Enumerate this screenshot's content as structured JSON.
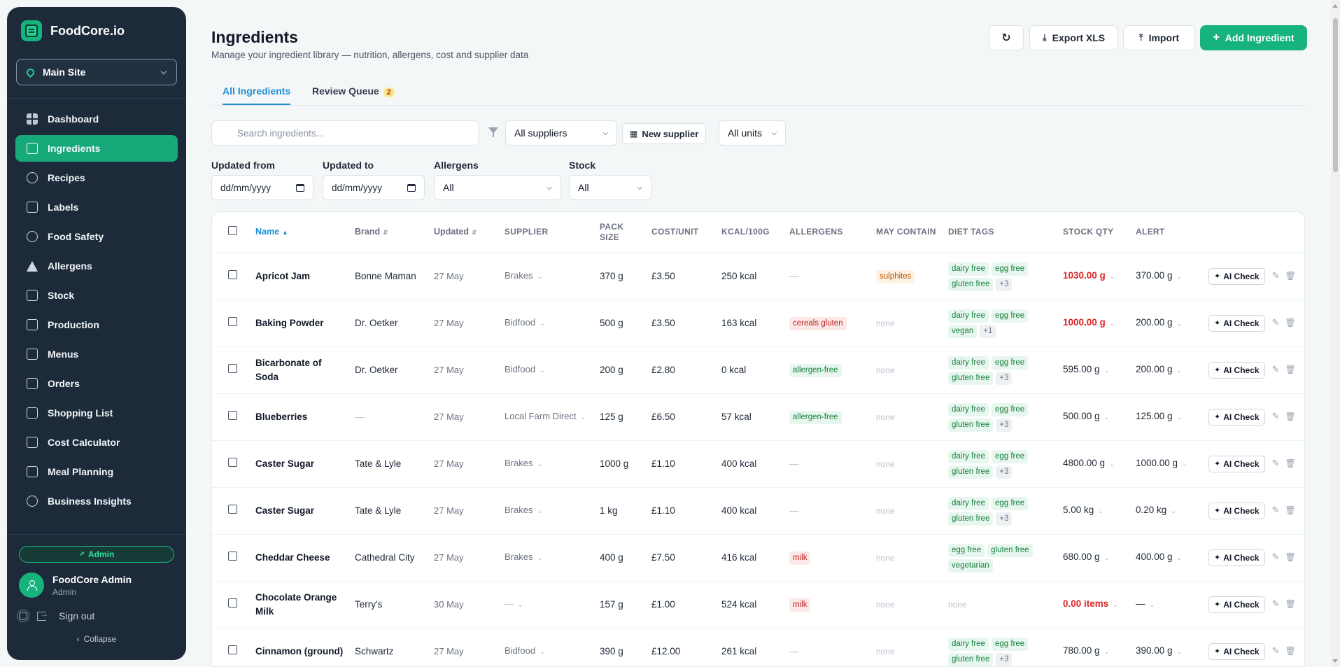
{
  "brand": {
    "name": "FoodCore.io"
  },
  "site_selector": {
    "value": "Main Site"
  },
  "nav": [
    {
      "label": "Dashboard",
      "icon": "dashboard-icon",
      "active": false
    },
    {
      "label": "Ingredients",
      "icon": "box-icon",
      "active": true
    },
    {
      "label": "Recipes",
      "icon": "chef-hat-icon",
      "active": false
    },
    {
      "label": "Labels",
      "icon": "tag-icon",
      "active": false
    },
    {
      "label": "Food Safety",
      "icon": "shield-icon",
      "active": false
    },
    {
      "label": "Allergens",
      "icon": "warning-icon",
      "active": false
    },
    {
      "label": "Stock",
      "icon": "package-icon",
      "active": false
    },
    {
      "label": "Production",
      "icon": "factory-icon",
      "active": false
    },
    {
      "label": "Menus",
      "icon": "book-icon",
      "active": false
    },
    {
      "label": "Orders",
      "icon": "cart-icon",
      "active": false
    },
    {
      "label": "Shopping List",
      "icon": "clipboard-icon",
      "active": false
    },
    {
      "label": "Cost Calculator",
      "icon": "calculator-icon",
      "active": false
    },
    {
      "label": "Meal Planning",
      "icon": "calendar-icon",
      "active": false
    },
    {
      "label": "Business Insights",
      "icon": "trend-icon",
      "active": false
    }
  ],
  "sidebar_footer": {
    "admin_label": "Admin",
    "user_name": "FoodCore Admin",
    "user_role": "Admin",
    "signout_label": "Sign out",
    "collapse_label": "Collapse"
  },
  "header": {
    "title": "Ingredients",
    "subtitle": "Manage your ingredient library — nutrition, allergens, cost and supplier data",
    "export_label": "Export XLS",
    "import_label": "Import",
    "add_label": "Add Ingredient"
  },
  "tabs": [
    {
      "label": "All Ingredients",
      "active": true
    },
    {
      "label": "Review Queue",
      "badge": "2",
      "active": false
    }
  ],
  "filters": {
    "search_placeholder": "Search ingredients...",
    "supplier_value": "All suppliers",
    "new_supplier_label": "New supplier",
    "units_value": "All units",
    "updated_from_label": "Updated from",
    "updated_from_value": "dd/mm/yyyy",
    "updated_to_label": "Updated to",
    "updated_to_value": "dd/mm/yyyy",
    "allergens_label": "Allergens",
    "allergens_value": "All",
    "stock_label": "Stock",
    "stock_value": "All"
  },
  "table": {
    "columns": [
      "Name",
      "Brand",
      "Updated",
      "Supplier",
      "Pack size",
      "Cost/unit",
      "Kcal/100g",
      "Allergens",
      "May contain",
      "Diet tags",
      "Stock qty",
      "Alert"
    ],
    "ai_check_label": "AI Check",
    "rows": [
      {
        "name": "Apricot Jam",
        "brand": "Bonne Maman",
        "updated": "27 May",
        "supplier": "Brakes",
        "pack": "370 g",
        "cost": "£3.50",
        "kcal": "250 kcal",
        "allergens": [],
        "may_contain": [
          {
            "t": "sulphites",
            "c": "orange"
          }
        ],
        "diet": [
          "dairy free",
          "egg free",
          "gluten free"
        ],
        "diet_more": "+3",
        "stock": "1030.00 g",
        "stock_low": true,
        "alert": "370.00 g"
      },
      {
        "name": "Baking Powder",
        "brand": "Dr. Oetker",
        "updated": "27 May",
        "supplier": "Bidfood",
        "pack": "500 g",
        "cost": "£3.50",
        "kcal": "163 kcal",
        "allergens": [
          {
            "t": "cereals gluten",
            "c": "red"
          }
        ],
        "may_contain": "none",
        "diet": [
          "dairy free",
          "egg free",
          "vegan"
        ],
        "diet_more": "+1",
        "stock": "1000.00 g",
        "stock_low": true,
        "alert": "200.00 g"
      },
      {
        "name": "Bicarbonate of Soda",
        "brand": "Dr. Oetker",
        "updated": "27 May",
        "supplier": "Bidfood",
        "pack": "200 g",
        "cost": "£2.80",
        "kcal": "0 kcal",
        "allergens": [
          {
            "t": "allergen-free",
            "c": "green"
          }
        ],
        "may_contain": "none",
        "diet": [
          "dairy free",
          "egg free",
          "gluten free"
        ],
        "diet_more": "+3",
        "stock": "595.00 g",
        "stock_low": false,
        "alert": "200.00 g"
      },
      {
        "name": "Blueberries",
        "brand": "—",
        "updated": "27 May",
        "supplier": "Local Farm Direct",
        "pack": "125 g",
        "cost": "£6.50",
        "kcal": "57 kcal",
        "allergens": [
          {
            "t": "allergen-free",
            "c": "green"
          }
        ],
        "may_contain": "none",
        "diet": [
          "dairy free",
          "egg free",
          "gluten free"
        ],
        "diet_more": "+3",
        "stock": "500.00 g",
        "stock_low": false,
        "alert": "125.00 g"
      },
      {
        "name": "Caster Sugar",
        "brand": "Tate & Lyle",
        "updated": "27 May",
        "supplier": "Brakes",
        "pack": "1000 g",
        "cost": "£1.10",
        "kcal": "400 kcal",
        "allergens": [],
        "may_contain": "none",
        "diet": [
          "dairy free",
          "egg free",
          "gluten free"
        ],
        "diet_more": "+3",
        "stock": "4800.00 g",
        "stock_low": false,
        "alert": "1000.00 g"
      },
      {
        "name": "Caster Sugar",
        "brand": "Tate & Lyle",
        "updated": "27 May",
        "supplier": "Brakes",
        "pack": "1 kg",
        "cost": "£1.10",
        "kcal": "400 kcal",
        "allergens": [],
        "may_contain": "none",
        "diet": [
          "dairy free",
          "egg free",
          "gluten free"
        ],
        "diet_more": "+3",
        "stock": "5.00 kg",
        "stock_low": false,
        "alert": "0.20 kg"
      },
      {
        "name": "Cheddar Cheese",
        "brand": "Cathedral City",
        "updated": "27 May",
        "supplier": "Brakes",
        "pack": "400 g",
        "cost": "£7.50",
        "kcal": "416 kcal",
        "allergens": [
          {
            "t": "milk",
            "c": "red"
          }
        ],
        "may_contain": "none",
        "diet": [
          "egg free",
          "gluten free",
          "vegetarian"
        ],
        "diet_more": "",
        "stock": "680.00 g",
        "stock_low": false,
        "alert": "400.00 g"
      },
      {
        "name": "Chocolate Orange Milk",
        "brand": "Terry's",
        "updated": "30 May",
        "supplier": "—",
        "pack": "157 g",
        "cost": "£1.00",
        "kcal": "524 kcal",
        "allergens": [
          {
            "t": "milk",
            "c": "red"
          }
        ],
        "may_contain": "none",
        "diet": "none",
        "diet_more": "",
        "stock": "0.00 items",
        "stock_low": true,
        "alert": "—"
      },
      {
        "name": "Cinnamon (ground)",
        "brand": "Schwartz",
        "updated": "27 May",
        "supplier": "Bidfood",
        "pack": "390 g",
        "cost": "£12.00",
        "kcal": "261 kcal",
        "allergens": [],
        "may_contain": "none",
        "diet": [
          "dairy free",
          "egg free",
          "gluten free"
        ],
        "diet_more": "+3",
        "stock": "780.00 g",
        "stock_low": false,
        "alert": "390.00 g"
      }
    ]
  }
}
